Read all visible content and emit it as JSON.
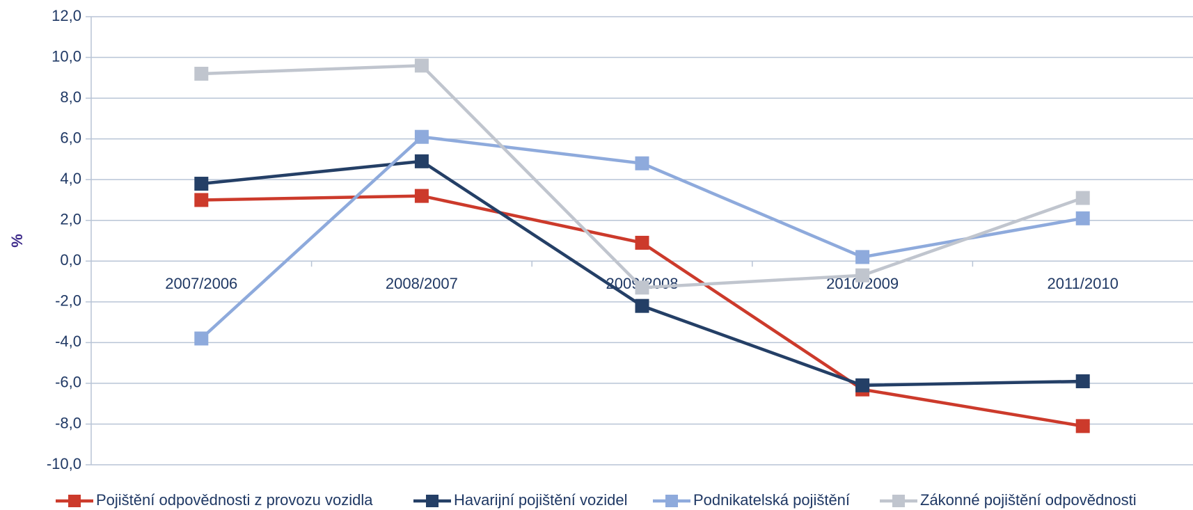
{
  "chart_data": {
    "type": "line",
    "ylabel": "%",
    "categories": [
      "2007/2006",
      "2008/2007",
      "2009/2008",
      "2010/2009",
      "2011/2010"
    ],
    "series": [
      {
        "name": "Pojištění odpovědnosti z provozu vozidla",
        "color": "#cc3a2b",
        "values": [
          3.0,
          3.2,
          0.9,
          -6.3,
          -8.1
        ]
      },
      {
        "name": "Havarijní pojištění vozidel",
        "color": "#243f66",
        "values": [
          3.8,
          4.9,
          -2.2,
          -6.1,
          -5.9
        ]
      },
      {
        "name": "Podnikatelská pojištění",
        "color": "#8eaadc",
        "values": [
          -3.8,
          6.1,
          4.8,
          0.2,
          2.1
        ]
      },
      {
        "name": "Zákonné pojištění odpovědnosti",
        "color": "#c0c5ce",
        "values": [
          9.2,
          9.6,
          -1.3,
          -0.7,
          3.1
        ]
      }
    ],
    "ylim": [
      -10,
      12
    ],
    "yticks": [
      {
        "value": -10,
        "label": "-10,0"
      },
      {
        "value": -8,
        "label": "-8,0"
      },
      {
        "value": -6,
        "label": "-6,0"
      },
      {
        "value": -4,
        "label": "-4,0"
      },
      {
        "value": -2,
        "label": "-2,0"
      },
      {
        "value": 0,
        "label": "0,0"
      },
      {
        "value": 2,
        "label": "2,0"
      },
      {
        "value": 4,
        "label": "4,0"
      },
      {
        "value": 6,
        "label": "6,0"
      },
      {
        "value": 8,
        "label": "8,0"
      },
      {
        "value": 10,
        "label": "10,0"
      },
      {
        "value": 12,
        "label": "12,0"
      }
    ],
    "grid": true,
    "legend": "bottom"
  }
}
